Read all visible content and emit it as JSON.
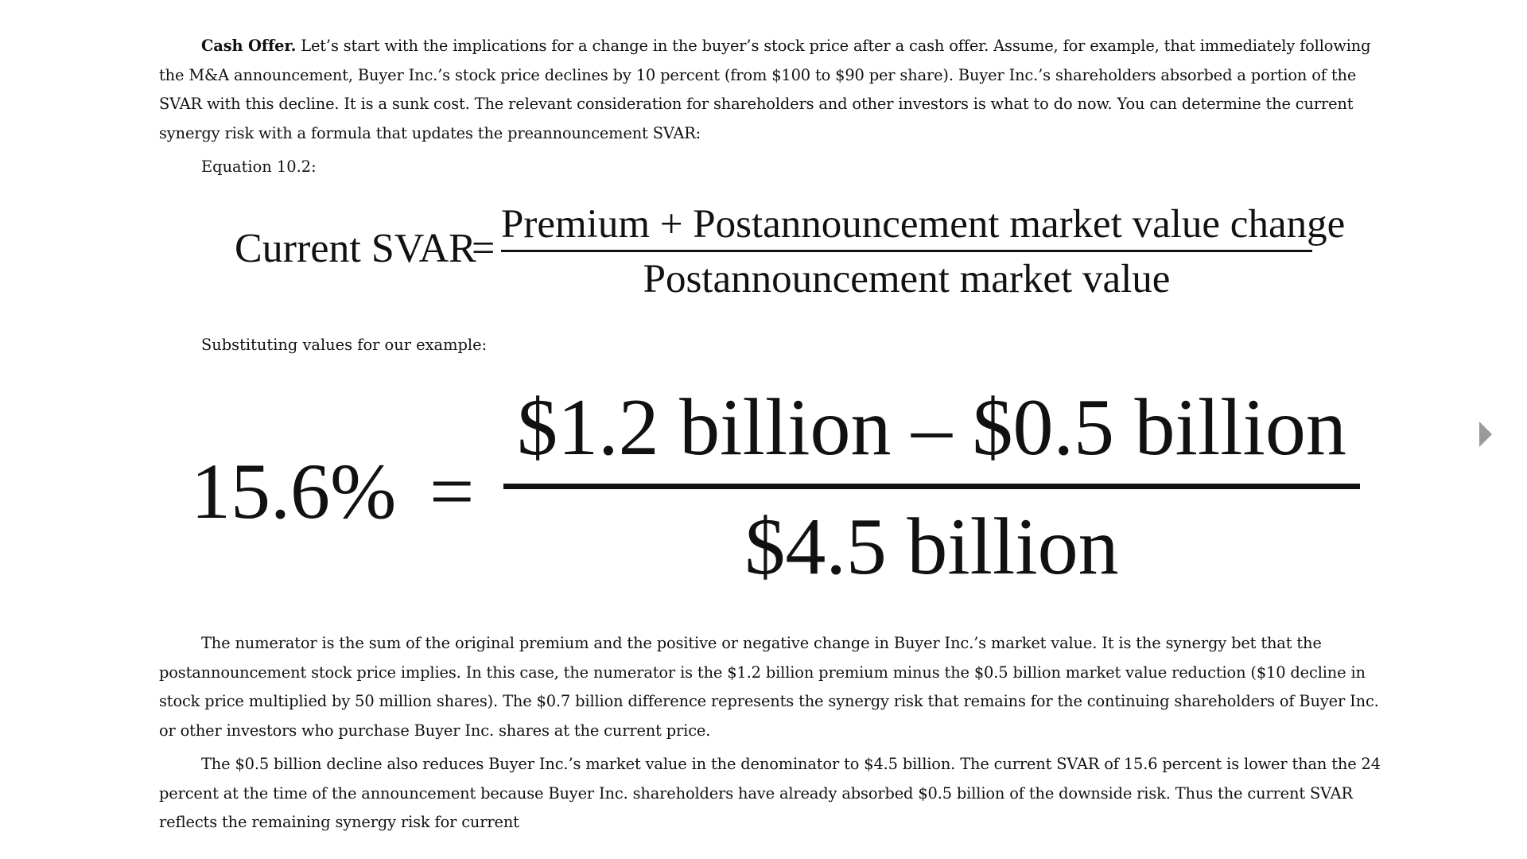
{
  "intro": {
    "lead": "Cash Offer.",
    "text": " Let’s start with the implications for a change in the buyer’s stock price after a cash offer. Assume, for example, that immediately following the M&A announcement, Buyer Inc.’s stock price declines by 10 percent (from $100 to $90 per share). Buyer Inc.’s shareholders absorbed a portion of the SVAR with this decline. It is a sunk cost. The relevant consideration for shareholders and other investors is what to do now. You can determine the current synergy risk with a formula that updates the preannouncement SVAR:"
  },
  "equation_label": "Equation 10.2:",
  "equation1": {
    "lhs": "Current SVAR",
    "equals": "=",
    "numerator": "Premium + Postannouncement market value change",
    "denominator": "Postannouncement market value"
  },
  "substituting_label": "Substituting values for our example:",
  "equation2": {
    "lhs": "15.6%",
    "equals": "=",
    "numerator": "$1.2 billion – $0.5 billion",
    "denominator": "$4.5 billion"
  },
  "para_numerator": "The numerator is the sum of the original premium and the positive or negative change in Buyer Inc.’s market value. It is the synergy bet that the postannouncement stock price implies. In this case, the numerator is the $1.2 billion premium minus the $0.5 billion market value reduction ($10 decline in stock price multiplied by 50 million shares). The $0.7 billion difference represents the synergy risk that remains for the continuing shareholders of Buyer Inc. or other investors who purchase Buyer Inc. shares at the current price.",
  "para_decline": "The $0.5 billion decline also reduces Buyer Inc.’s market value in the denominator to $4.5 billion. The current SVAR of 15.6 percent is lower than the 24 percent at the time of the announcement because Buyer Inc. shareholders have already absorbed $0.5 billion of the downside risk. Thus the current SVAR reflects the remaining synergy risk for current",
  "nav": {
    "next_icon": "triangle-right-icon"
  }
}
